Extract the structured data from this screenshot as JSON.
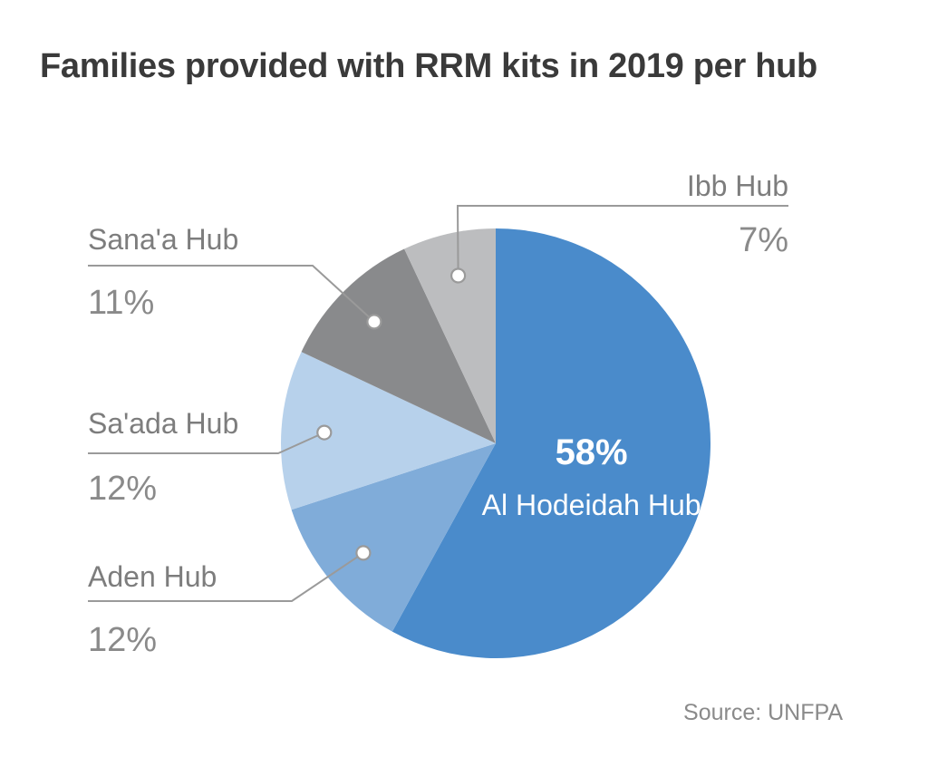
{
  "title": "Families provided with RRM kits in 2019 per hub",
  "source": "Source: UNFPA",
  "chart_data": {
    "type": "pie",
    "title": "Families provided with RRM kits in 2019 per hub",
    "slices": [
      {
        "label": "Al Hodeidah Hub",
        "value": 58,
        "value_label": "58%",
        "color": "#4a8bcb"
      },
      {
        "label": "Aden Hub",
        "value": 12,
        "value_label": "12%",
        "color": "#80acd9"
      },
      {
        "label": "Sa'ada Hub",
        "value": 12,
        "value_label": "12%",
        "color": "#b7d1eb"
      },
      {
        "label": "Sana'a Hub",
        "value": 11,
        "value_label": "11%",
        "color": "#898a8c"
      },
      {
        "label": "Ibb Hub",
        "value": 7,
        "value_label": "7%",
        "color": "#bcbdbf"
      }
    ],
    "start": "12 o'clock",
    "direction": "clockwise",
    "legend": "none"
  }
}
